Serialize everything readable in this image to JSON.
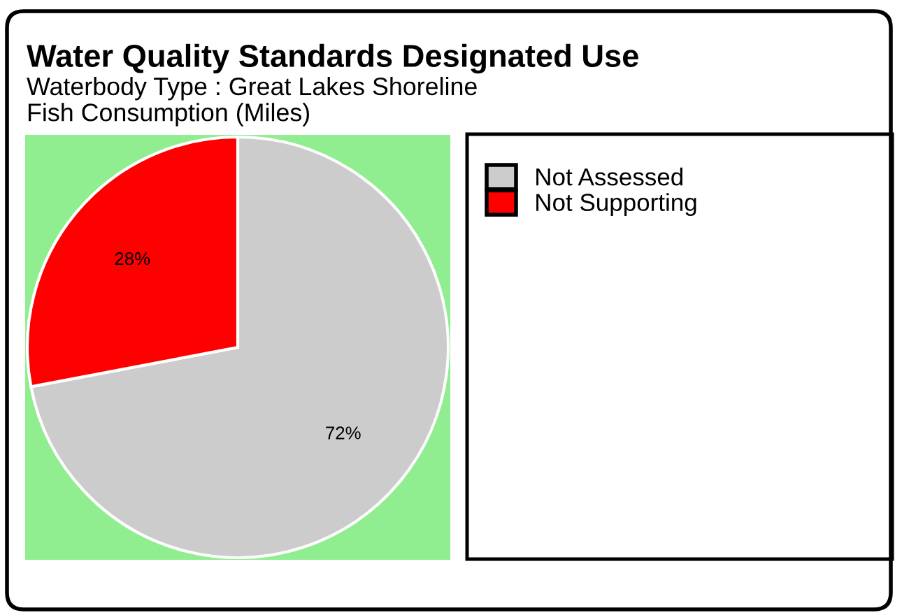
{
  "chart_data": {
    "type": "pie",
    "title": "Water Quality Standards Designated Use",
    "subtitle": "Waterbody Type : Great Lakes Shoreline\nFish Consumption (Miles)",
    "categories": [
      "Not Assessed",
      "Not Supporting"
    ],
    "values": [
      72,
      28
    ],
    "colors": [
      "#cccccc",
      "#ff0000"
    ],
    "value_labels": [
      "72%",
      "28%"
    ],
    "legend": "right"
  }
}
